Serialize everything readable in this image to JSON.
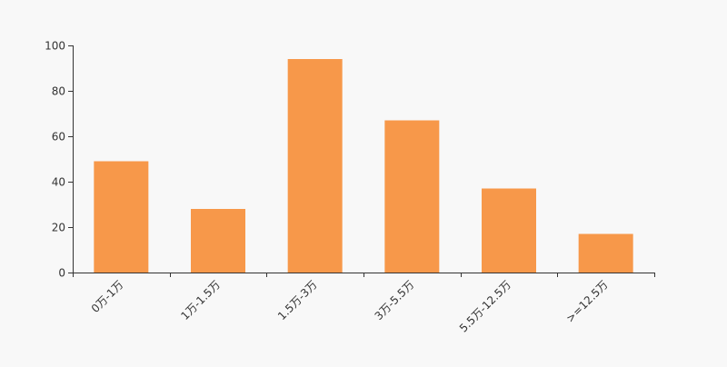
{
  "chart_data": {
    "type": "bar",
    "categories": [
      "0万-1万",
      "1万-1.5万",
      "1.5万-3万",
      "3万-5.5万",
      "5.5万-12.5万",
      ">=12.5万"
    ],
    "values": [
      49,
      28,
      94,
      67,
      37,
      17
    ],
    "yticks": [
      "0",
      "20",
      "40",
      "60",
      "80",
      "100"
    ],
    "ylim": [
      0,
      100
    ],
    "grid": false,
    "colors": {
      "bar": "#f7984a",
      "axis": "#333333",
      "background": "#f8f8f8"
    }
  }
}
